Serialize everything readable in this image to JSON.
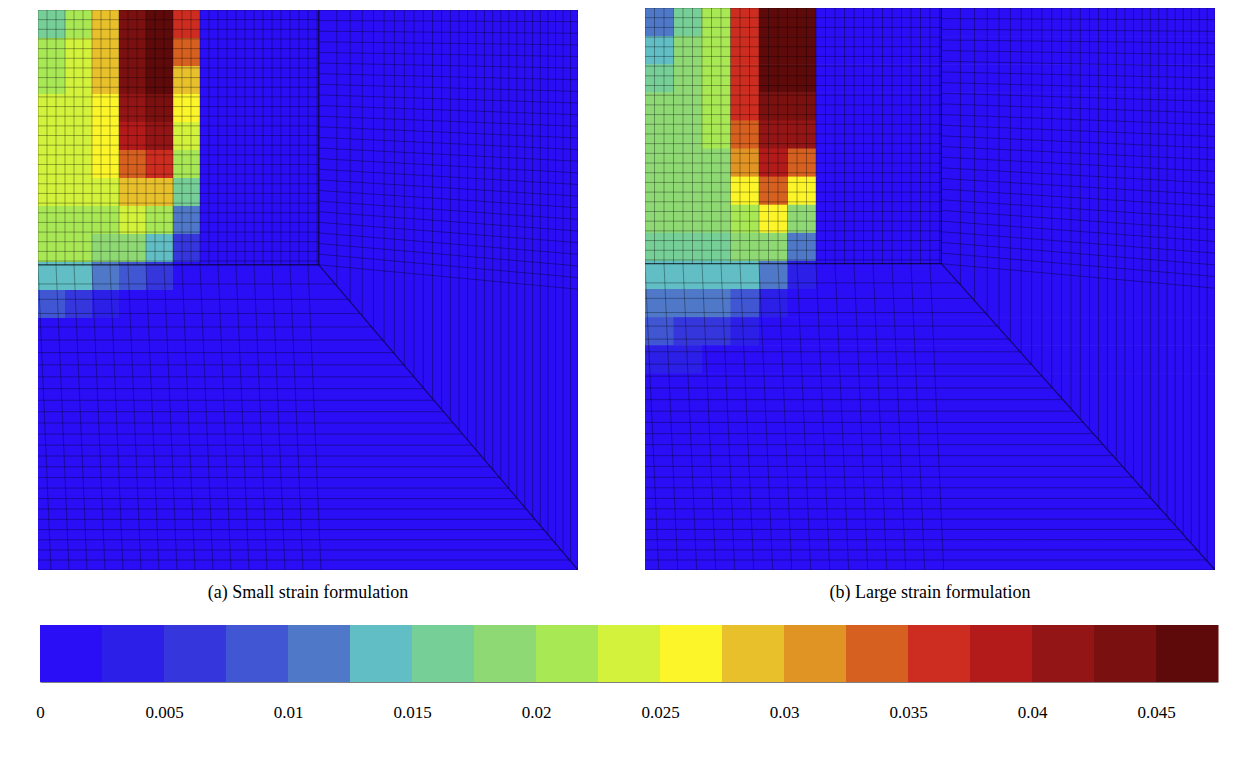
{
  "chart_data": {
    "type": "heatmap",
    "tick_labels": false,
    "panels": [
      {
        "caption": "(a) Small strain formulation",
        "cells": [
          [
            0.016,
            0.022,
            0.03,
            0.043,
            0.047,
            0.036,
            0,
            0,
            0,
            0,
            0,
            0,
            0,
            0,
            0,
            0,
            0,
            0,
            0,
            0
          ],
          [
            0.02,
            0.023,
            0.029,
            0.044,
            0.047,
            0.033,
            0,
            0,
            0,
            0,
            0,
            0,
            0,
            0,
            0,
            0,
            0,
            0,
            0,
            0
          ],
          [
            0.022,
            0.024,
            0.028,
            0.043,
            0.046,
            0.03,
            0,
            0,
            0,
            0,
            0,
            0,
            0,
            0,
            0,
            0,
            0,
            0,
            0,
            0
          ],
          [
            0.023,
            0.024,
            0.027,
            0.041,
            0.044,
            0.027,
            0,
            0,
            0,
            0,
            0,
            0,
            0,
            0,
            0,
            0,
            0,
            0,
            0,
            0
          ],
          [
            0.023,
            0.024,
            0.026,
            0.038,
            0.04,
            0.024,
            0,
            0,
            0,
            0,
            0,
            0,
            0,
            0,
            0,
            0,
            0,
            0,
            0,
            0
          ],
          [
            0.023,
            0.024,
            0.025,
            0.033,
            0.035,
            0.02,
            0,
            0,
            0,
            0,
            0,
            0,
            0,
            0,
            0,
            0,
            0,
            0,
            0,
            0
          ],
          [
            0.023,
            0.023,
            0.024,
            0.029,
            0.029,
            0.016,
            0,
            0,
            0,
            0,
            0,
            0,
            0,
            0,
            0,
            0,
            0,
            0,
            0,
            0
          ],
          [
            0.022,
            0.022,
            0.022,
            0.024,
            0.022,
            0.012,
            0,
            0,
            0,
            0,
            0,
            0,
            0,
            0,
            0,
            0,
            0,
            0,
            0,
            0
          ],
          [
            0.02,
            0.02,
            0.019,
            0.018,
            0.014,
            0.006,
            0,
            0,
            0,
            0,
            0,
            0,
            0,
            0,
            0,
            0,
            0,
            0,
            0,
            0
          ],
          [
            0.015,
            0.014,
            0.012,
            0.009,
            0.005,
            0,
            0,
            0,
            0,
            0,
            0,
            0,
            0,
            0,
            0,
            0,
            0,
            0,
            0,
            0
          ],
          [
            0.008,
            0.006,
            0.004,
            0.002,
            0,
            0,
            0,
            0,
            0,
            0,
            0,
            0,
            0,
            0,
            0,
            0,
            0,
            0,
            0,
            0
          ],
          [
            0.002,
            0,
            0,
            0,
            0,
            0,
            0,
            0,
            0,
            0,
            0,
            0,
            0,
            0,
            0,
            0,
            0,
            0,
            0,
            0
          ],
          [
            0,
            0,
            0,
            0,
            0,
            0,
            0,
            0,
            0,
            0,
            0,
            0,
            0,
            0,
            0,
            0,
            0,
            0,
            0,
            0
          ],
          [
            0,
            0,
            0,
            0,
            0,
            0,
            0,
            0,
            0,
            0,
            0,
            0,
            0,
            0,
            0,
            0,
            0,
            0,
            0,
            0
          ],
          [
            0,
            0,
            0,
            0,
            0,
            0,
            0,
            0,
            0,
            0,
            0,
            0,
            0,
            0,
            0,
            0,
            0,
            0,
            0,
            0
          ],
          [
            0,
            0,
            0,
            0,
            0,
            0,
            0,
            0,
            0,
            0,
            0,
            0,
            0,
            0,
            0,
            0,
            0,
            0,
            0,
            0
          ],
          [
            0,
            0,
            0,
            0,
            0,
            0,
            0,
            0,
            0,
            0,
            0,
            0,
            0,
            0,
            0,
            0,
            0,
            0,
            0,
            0
          ],
          [
            0,
            0,
            0,
            0,
            0,
            0,
            0,
            0,
            0,
            0,
            0,
            0,
            0,
            0,
            0,
            0,
            0,
            0,
            0,
            0
          ],
          [
            0,
            0,
            0,
            0,
            0,
            0,
            0,
            0,
            0,
            0,
            0,
            0,
            0,
            0,
            0,
            0,
            0,
            0,
            0,
            0
          ],
          [
            0,
            0,
            0,
            0,
            0,
            0,
            0,
            0,
            0,
            0,
            0,
            0,
            0,
            0,
            0,
            0,
            0,
            0,
            0,
            0
          ]
        ]
      },
      {
        "caption": "(b) Large strain formulation",
        "cells": [
          [
            0.012,
            0.016,
            0.022,
            0.035,
            0.045,
            0.047,
            0,
            0,
            0,
            0,
            0,
            0,
            0,
            0,
            0,
            0,
            0,
            0,
            0,
            0
          ],
          [
            0.015,
            0.018,
            0.022,
            0.036,
            0.045,
            0.047,
            0,
            0,
            0,
            0,
            0,
            0,
            0,
            0,
            0,
            0,
            0,
            0,
            0,
            0
          ],
          [
            0.017,
            0.018,
            0.021,
            0.037,
            0.045,
            0.046,
            0,
            0,
            0,
            0,
            0,
            0,
            0,
            0,
            0,
            0,
            0,
            0,
            0,
            0
          ],
          [
            0.018,
            0.018,
            0.02,
            0.036,
            0.044,
            0.043,
            0,
            0,
            0,
            0,
            0,
            0,
            0,
            0,
            0,
            0,
            0,
            0,
            0,
            0
          ],
          [
            0.018,
            0.018,
            0.02,
            0.034,
            0.042,
            0.04,
            0,
            0,
            0,
            0,
            0,
            0,
            0,
            0,
            0,
            0,
            0,
            0,
            0,
            0
          ],
          [
            0.018,
            0.018,
            0.019,
            0.031,
            0.039,
            0.034,
            0,
            0,
            0,
            0,
            0,
            0,
            0,
            0,
            0,
            0,
            0,
            0,
            0,
            0
          ],
          [
            0.018,
            0.018,
            0.019,
            0.027,
            0.033,
            0.027,
            0,
            0,
            0,
            0,
            0,
            0,
            0,
            0,
            0,
            0,
            0,
            0,
            0,
            0
          ],
          [
            0.018,
            0.018,
            0.018,
            0.022,
            0.026,
            0.018,
            0,
            0,
            0,
            0,
            0,
            0,
            0,
            0,
            0,
            0,
            0,
            0,
            0,
            0
          ],
          [
            0.017,
            0.017,
            0.016,
            0.018,
            0.018,
            0.01,
            0,
            0,
            0,
            0,
            0,
            0,
            0,
            0,
            0,
            0,
            0,
            0,
            0,
            0
          ],
          [
            0.015,
            0.015,
            0.014,
            0.013,
            0.01,
            0.004,
            0,
            0,
            0,
            0,
            0,
            0,
            0,
            0,
            0,
            0,
            0,
            0,
            0,
            0
          ],
          [
            0.012,
            0.011,
            0.01,
            0.008,
            0.004,
            0,
            0,
            0,
            0,
            0,
            0,
            0,
            0,
            0,
            0,
            0,
            0,
            0,
            0,
            0
          ],
          [
            0.008,
            0.007,
            0.005,
            0.003,
            0,
            0,
            0,
            0,
            0,
            0,
            0,
            0,
            0,
            0,
            0,
            0,
            0,
            0,
            0,
            0
          ],
          [
            0.004,
            0.003,
            0.002,
            0,
            0,
            0,
            0,
            0,
            0,
            0,
            0,
            0,
            0,
            0,
            0,
            0,
            0,
            0,
            0,
            0
          ],
          [
            0,
            0,
            0,
            0,
            0,
            0,
            0,
            0,
            0,
            0,
            0,
            0,
            0,
            0,
            0,
            0,
            0,
            0,
            0,
            0
          ],
          [
            0,
            0,
            0,
            0,
            0,
            0,
            0,
            0,
            0,
            0,
            0,
            0,
            0,
            0,
            0,
            0,
            0,
            0,
            0,
            0
          ],
          [
            0,
            0,
            0,
            0,
            0,
            0,
            0,
            0,
            0,
            0,
            0,
            0,
            0,
            0,
            0,
            0,
            0,
            0,
            0,
            0
          ],
          [
            0,
            0,
            0,
            0,
            0,
            0,
            0,
            0,
            0,
            0,
            0,
            0,
            0,
            0,
            0,
            0,
            0,
            0,
            0,
            0
          ],
          [
            0,
            0,
            0,
            0,
            0,
            0,
            0,
            0,
            0,
            0,
            0,
            0,
            0,
            0,
            0,
            0,
            0,
            0,
            0,
            0
          ],
          [
            0,
            0,
            0,
            0,
            0,
            0,
            0,
            0,
            0,
            0,
            0,
            0,
            0,
            0,
            0,
            0,
            0,
            0,
            0,
            0
          ],
          [
            0,
            0,
            0,
            0,
            0,
            0,
            0,
            0,
            0,
            0,
            0,
            0,
            0,
            0,
            0,
            0,
            0,
            0,
            0,
            0
          ]
        ]
      }
    ],
    "colorbar": {
      "range": [
        0,
        0.0475
      ],
      "ticks": [
        0,
        0.005,
        0.01,
        0.015,
        0.02,
        0.025,
        0.03,
        0.035,
        0.04,
        0.045
      ],
      "colors": [
        "#2a0ef5",
        "#2c1fe8",
        "#3536dc",
        "#4056d2",
        "#4f79c8",
        "#61bec4",
        "#77cf98",
        "#8fd975",
        "#a9e855",
        "#d2f23c",
        "#fbf52a",
        "#e8c02c",
        "#e09424",
        "#d6601f",
        "#cc2d20",
        "#b31a1a",
        "#931515",
        "#7a1010",
        "#5e0a0a"
      ]
    }
  }
}
